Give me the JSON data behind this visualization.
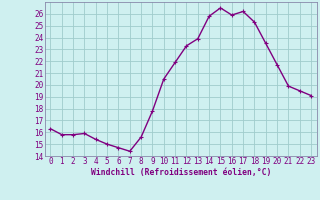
{
  "x": [
    0,
    1,
    2,
    3,
    4,
    5,
    6,
    7,
    8,
    9,
    10,
    11,
    12,
    13,
    14,
    15,
    16,
    17,
    18,
    19,
    20,
    21,
    22,
    23
  ],
  "y": [
    16.3,
    15.8,
    15.8,
    15.9,
    15.4,
    15.0,
    14.7,
    14.4,
    15.6,
    17.8,
    20.5,
    21.9,
    23.3,
    23.9,
    25.8,
    26.5,
    25.9,
    26.2,
    25.3,
    23.5,
    21.7,
    19.9,
    19.5,
    19.1
  ],
  "line_color": "#800080",
  "marker_color": "#800080",
  "bg_color": "#cff0f0",
  "grid_color": "#a0cccc",
  "xlabel": "Windchill (Refroidissement éolien,°C)",
  "xlabel_color": "#800080",
  "tick_color": "#800080",
  "axis_color": "#8888aa",
  "ylim": [
    14,
    27
  ],
  "xlim": [
    -0.5,
    23.5
  ],
  "yticks": [
    14,
    15,
    16,
    17,
    18,
    19,
    20,
    21,
    22,
    23,
    24,
    25,
    26
  ],
  "xticks": [
    0,
    1,
    2,
    3,
    4,
    5,
    6,
    7,
    8,
    9,
    10,
    11,
    12,
    13,
    14,
    15,
    16,
    17,
    18,
    19,
    20,
    21,
    22,
    23
  ],
  "font_family": "monospace",
  "tick_fontsize": 5.5,
  "xlabel_fontsize": 5.8,
  "linewidth": 1.0,
  "markersize": 3.5
}
